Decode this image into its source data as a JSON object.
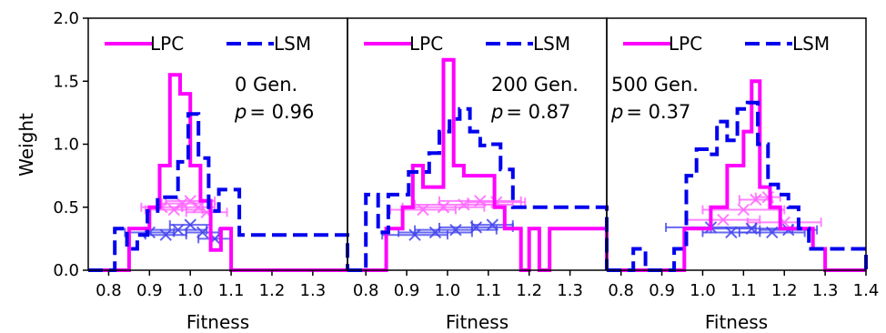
{
  "chart_data": [
    {
      "type": "line",
      "xlabel": "Fitness",
      "ylabel": "Weight",
      "xlim": [
        0.75,
        1.385
      ],
      "ylim": [
        0,
        2.0
      ],
      "xticks": [
        0.8,
        0.9,
        1.0,
        1.1,
        1.2,
        1.3
      ],
      "xtick_labels": [
        "0.8",
        "0.9",
        "1.0",
        "1.1",
        "1.2",
        "1.3"
      ],
      "yticks": [
        0.0,
        0.5,
        1.0,
        1.5,
        2.0
      ],
      "ytick_labels": [
        "0.0",
        "0.5",
        "1.0",
        "1.5",
        "2.0"
      ],
      "legend": [
        "LPC",
        "LSM"
      ],
      "legend_placement": "top",
      "annotation_gen": "0 Gen.",
      "annotation_p_symbol": "p",
      "annotation_p_value": "= 0.96",
      "series": [
        {
          "name": "LPC",
          "color": "#ff00ff",
          "style": "step-solid",
          "edges": [
            0.75,
            0.85,
            0.9,
            0.925,
            0.95,
            0.975,
            1.0,
            1.025,
            1.05,
            1.075,
            1.1,
            1.385
          ],
          "values": [
            0,
            0.33,
            0.5,
            0.83,
            1.55,
            1.4,
            0.83,
            0.55,
            0.16,
            0.33,
            0
          ]
        },
        {
          "name": "LSM",
          "color": "#0000ee",
          "style": "step-dashed",
          "edges": [
            0.75,
            0.815,
            0.845,
            0.87,
            0.895,
            0.92,
            0.945,
            0.97,
            0.995,
            1.02,
            1.045,
            1.07,
            1.095,
            1.12,
            1.385
          ],
          "values": [
            0,
            0.33,
            0.17,
            0.28,
            0.47,
            0.58,
            0.58,
            0.86,
            1.24,
            0.89,
            0.47,
            0.64,
            0.64,
            0.28,
            0
          ]
        }
      ],
      "error_points": [
        {
          "color": "#ff66ff",
          "points": [
            {
              "x": 0.93,
              "y": 0.5,
              "xerr": 0.05
            },
            {
              "x": 0.96,
              "y": 0.48,
              "xerr": 0.07
            },
            {
              "x": 0.98,
              "y": 0.53,
              "xerr": 0.05
            },
            {
              "x": 1.0,
              "y": 0.55,
              "xerr": 0.06
            },
            {
              "x": 1.02,
              "y": 0.5,
              "xerr": 0.04
            },
            {
              "x": 1.04,
              "y": 0.46,
              "xerr": 0.05
            }
          ]
        },
        {
          "color": "#4444ee",
          "points": [
            {
              "x": 0.9,
              "y": 0.3,
              "xerr": 0.06
            },
            {
              "x": 0.94,
              "y": 0.28,
              "xerr": 0.05
            },
            {
              "x": 0.97,
              "y": 0.32,
              "xerr": 0.07
            },
            {
              "x": 1.0,
              "y": 0.36,
              "xerr": 0.05
            },
            {
              "x": 1.03,
              "y": 0.3,
              "xerr": 0.04
            },
            {
              "x": 1.06,
              "y": 0.25,
              "xerr": 0.04
            }
          ]
        }
      ]
    },
    {
      "type": "line",
      "xlabel": "Fitness",
      "ylabel": "",
      "xlim": [
        0.755,
        1.39
      ],
      "ylim": [
        0,
        2.0
      ],
      "xticks": [
        0.8,
        0.9,
        1.0,
        1.1,
        1.2,
        1.3
      ],
      "xtick_labels": [
        "0.8",
        "0.9",
        "1.0",
        "1.1",
        "1.2",
        "1.3"
      ],
      "yticks": [],
      "ytick_labels": [],
      "legend": [
        "LPC",
        "LSM"
      ],
      "legend_placement": "top",
      "annotation_gen": "200 Gen.",
      "annotation_p_symbol": "p",
      "annotation_p_value": "= 0.87",
      "series": [
        {
          "name": "LPC",
          "color": "#ff00ff",
          "style": "step-solid",
          "edges": [
            0.755,
            0.85,
            0.89,
            0.915,
            0.94,
            0.965,
            0.99,
            1.015,
            1.04,
            1.065,
            1.09,
            1.115,
            1.14,
            1.18,
            1.2,
            1.225,
            1.25,
            1.39
          ],
          "values": [
            0,
            0.33,
            0.5,
            0.83,
            0.66,
            0.66,
            1.67,
            0.83,
            0.75,
            0.75,
            0.75,
            0.5,
            0.33,
            0,
            0.33,
            0,
            0.33,
            0
          ]
        },
        {
          "name": "LSM",
          "color": "#0000ee",
          "style": "step-dashed",
          "edges": [
            0.755,
            0.8,
            0.83,
            0.855,
            0.88,
            0.905,
            0.93,
            0.955,
            0.98,
            1.005,
            1.03,
            1.055,
            1.08,
            1.105,
            1.13,
            1.16,
            1.39
          ],
          "values": [
            0,
            0.6,
            0.3,
            0.6,
            0.6,
            0.78,
            0.78,
            0.93,
            1.1,
            1.2,
            1.28,
            1.1,
            0.99,
            1.0,
            0.8,
            0.5,
            0
          ]
        }
      ],
      "error_points": [
        {
          "color": "#ff66ff",
          "points": [
            {
              "x": 0.94,
              "y": 0.48,
              "xerr": 0.08
            },
            {
              "x": 0.99,
              "y": 0.5,
              "xerr": 0.1
            },
            {
              "x": 1.04,
              "y": 0.52,
              "xerr": 0.12
            },
            {
              "x": 1.08,
              "y": 0.55,
              "xerr": 0.1
            },
            {
              "x": 1.12,
              "y": 0.54,
              "xerr": 0.07
            }
          ]
        },
        {
          "color": "#4444ee",
          "points": [
            {
              "x": 0.92,
              "y": 0.28,
              "xerr": 0.08
            },
            {
              "x": 0.97,
              "y": 0.3,
              "xerr": 0.09
            },
            {
              "x": 1.02,
              "y": 0.32,
              "xerr": 0.1
            },
            {
              "x": 1.07,
              "y": 0.34,
              "xerr": 0.09
            },
            {
              "x": 1.11,
              "y": 0.36,
              "xerr": 0.05
            }
          ]
        }
      ]
    },
    {
      "type": "line",
      "xlabel": "Fitness",
      "ylabel": "",
      "xlim": [
        0.765,
        1.4
      ],
      "ylim": [
        0,
        2.0
      ],
      "xticks": [
        0.8,
        0.9,
        1.0,
        1.1,
        1.2,
        1.3,
        1.4
      ],
      "xtick_labels": [
        "0.8",
        "0.9",
        "1.0",
        "1.1",
        "1.2",
        "1.3",
        "1.4"
      ],
      "yticks": [],
      "ytick_labels": [],
      "legend": [
        "LPC",
        "LSM"
      ],
      "legend_placement": "top",
      "annotation_gen": "500 Gen.",
      "annotation_p_symbol": "p",
      "annotation_p_value": "= 0.37",
      "series": [
        {
          "name": "LPC",
          "color": "#ff00ff",
          "style": "step-solid",
          "edges": [
            0.765,
            0.955,
            1.02,
            1.06,
            1.1,
            1.12,
            1.14,
            1.165,
            1.19,
            1.215,
            1.24,
            1.27,
            1.3,
            1.4
          ],
          "values": [
            0,
            0.33,
            0.5,
            0.83,
            1.1,
            1.5,
            0.66,
            0.5,
            0.33,
            0.33,
            0.33,
            0.17,
            0,
            0
          ]
        },
        {
          "name": "LSM",
          "color": "#0000ee",
          "style": "step-dashed",
          "edges": [
            0.765,
            0.83,
            0.86,
            0.93,
            0.96,
            0.985,
            1.01,
            1.035,
            1.06,
            1.085,
            1.11,
            1.135,
            1.16,
            1.185,
            1.21,
            1.235,
            1.26,
            1.4
          ],
          "values": [
            0,
            0.17,
            0,
            0.17,
            0.75,
            0.96,
            0.92,
            1.18,
            1.03,
            1.28,
            1.33,
            1.0,
            0.68,
            0.6,
            0.5,
            0.33,
            0.17,
            0
          ]
        }
      ],
      "error_points": [
        {
          "color": "#ff66ff",
          "points": [
            {
              "x": 1.05,
              "y": 0.4,
              "xerr": 0.09
            },
            {
              "x": 1.1,
              "y": 0.48,
              "xerr": 0.1
            },
            {
              "x": 1.13,
              "y": 0.56,
              "xerr": 0.04
            },
            {
              "x": 1.16,
              "y": 0.58,
              "xerr": 0.03
            },
            {
              "x": 1.2,
              "y": 0.38,
              "xerr": 0.09
            }
          ]
        },
        {
          "color": "#4444ee",
          "points": [
            {
              "x": 1.02,
              "y": 0.34,
              "xerr": 0.11
            },
            {
              "x": 1.07,
              "y": 0.3,
              "xerr": 0.07
            },
            {
              "x": 1.12,
              "y": 0.33,
              "xerr": 0.1
            },
            {
              "x": 1.17,
              "y": 0.3,
              "xerr": 0.08
            },
            {
              "x": 1.21,
              "y": 0.32,
              "xerr": 0.07
            }
          ]
        }
      ]
    }
  ]
}
